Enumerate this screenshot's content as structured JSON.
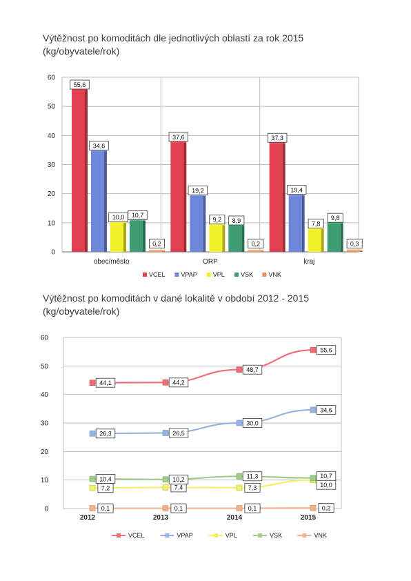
{
  "chart_data": [
    {
      "type": "bar",
      "title": "Výtěžnost po komoditách dle jednotlivých oblastí za rok 2015",
      "subtitle": "(kg/obyvatele/rok)",
      "categories": [
        "obec/město",
        "ORP",
        "kraj"
      ],
      "series": [
        {
          "name": "VCEL",
          "color": "#e0404f",
          "values": [
            55.6,
            37.6,
            37.3
          ],
          "labels": [
            "55,6",
            "37,6",
            "37,3"
          ]
        },
        {
          "name": "VPAP",
          "color": "#6f87d8",
          "values": [
            34.6,
            19.2,
            19.4
          ],
          "labels": [
            "34,6",
            "19,2",
            "19,4"
          ]
        },
        {
          "name": "VPL",
          "color": "#f2f02a",
          "values": [
            10.0,
            9.2,
            7.8
          ],
          "labels": [
            "10,0",
            "9,2",
            "7,8"
          ]
        },
        {
          "name": "VSK",
          "color": "#3f9d74",
          "values": [
            10.7,
            8.9,
            9.8
          ],
          "labels": [
            "10,7",
            "8,9",
            "9,8"
          ]
        },
        {
          "name": "VNK",
          "color": "#e88f5c",
          "values": [
            0.2,
            0.2,
            0.3
          ],
          "labels": [
            "0,2",
            "0,2",
            "0,3"
          ]
        }
      ],
      "ylim": [
        0,
        60
      ],
      "yticks": [
        "0",
        "10",
        "20",
        "30",
        "40",
        "50",
        "60"
      ],
      "grid": true,
      "legend_position": "bottom"
    },
    {
      "type": "line",
      "title": "Výtěžnost po komoditách v dané lokalitě v období 2012 - 2015",
      "subtitle": "(kg/obyvatele/rok)",
      "x": [
        "2012",
        "2013",
        "2014",
        "2015"
      ],
      "series": [
        {
          "name": "VCEL",
          "color": "#ef6d77",
          "values": [
            44.1,
            44.2,
            48.7,
            55.6
          ],
          "labels": [
            "44,1",
            "44,2",
            "48,7",
            "55,6"
          ]
        },
        {
          "name": "VPAP",
          "color": "#98b2e3",
          "values": [
            26.3,
            26.5,
            30.0,
            34.6
          ],
          "labels": [
            "26,3",
            "26,5",
            "30,0",
            "34,6"
          ]
        },
        {
          "name": "VPL",
          "color": "#f2f06a",
          "values": [
            7.2,
            7.4,
            7.3,
            10.0
          ],
          "labels": [
            "7,2",
            "7,4",
            "7,3",
            "10,0"
          ]
        },
        {
          "name": "VSK",
          "color": "#9fce8a",
          "values": [
            10.4,
            10.2,
            11.3,
            10.7
          ],
          "labels": [
            "10,4",
            "10,2",
            "11,3",
            "10,7"
          ]
        },
        {
          "name": "VNK",
          "color": "#f2b28c",
          "values": [
            0.1,
            0.1,
            0.1,
            0.2
          ],
          "labels": [
            "0,1",
            "0,1",
            "0,1",
            "0,2"
          ]
        }
      ],
      "ylim": [
        0,
        60
      ],
      "yticks": [
        "0",
        "10",
        "20",
        "30",
        "40",
        "50",
        "60"
      ],
      "grid": true,
      "legend_position": "bottom"
    }
  ]
}
